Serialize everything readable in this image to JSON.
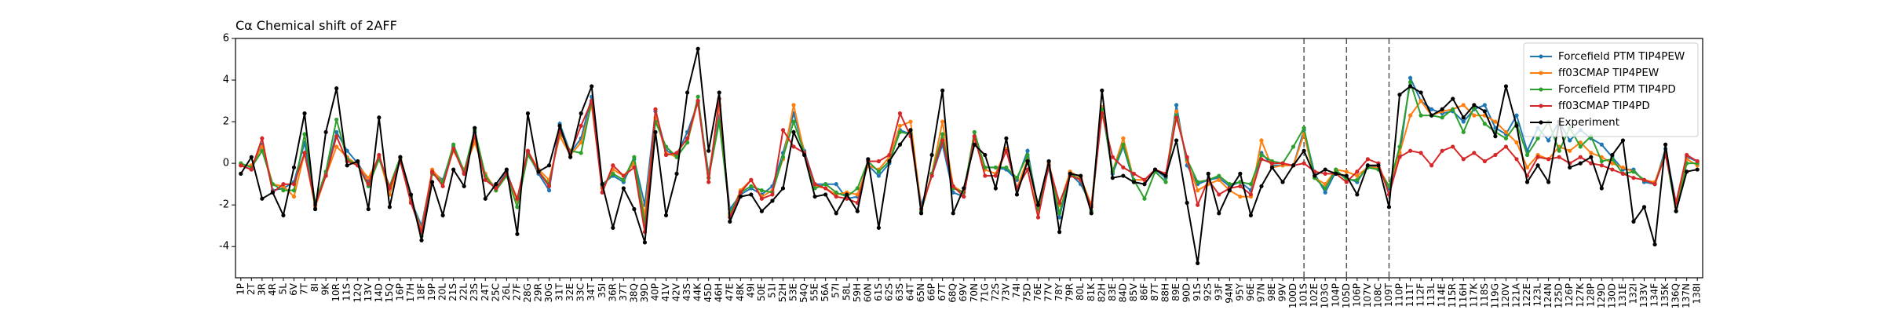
{
  "chart_data": {
    "type": "line",
    "title": "Cα Chemical shift of 2AFF",
    "categories": [
      "1P",
      "2T",
      "3R",
      "4R",
      "5L",
      "6V",
      "7T",
      "8I",
      "9K",
      "10R",
      "11S",
      "12Q",
      "13V",
      "14D",
      "15Q",
      "16P",
      "17H",
      "18F",
      "19P",
      "20L",
      "21S",
      "22L",
      "23S",
      "24T",
      "25C",
      "26L",
      "27F",
      "28G",
      "29R",
      "30G",
      "31T",
      "32E",
      "33C",
      "34T",
      "35I",
      "36R",
      "37T",
      "38Q",
      "39D",
      "40P",
      "41V",
      "42V",
      "43S",
      "44K",
      "45D",
      "46H",
      "47E",
      "48K",
      "49I",
      "50E",
      "51I",
      "52H",
      "53E",
      "54Q",
      "55E",
      "56A",
      "57I",
      "58L",
      "59H",
      "60N",
      "61S",
      "62S",
      "63S",
      "64T",
      "65N",
      "66P",
      "67T",
      "68Q",
      "69V",
      "70N",
      "71G",
      "72S",
      "73V",
      "74I",
      "75D",
      "76E",
      "77V",
      "78Y",
      "79R",
      "80L",
      "81K",
      "82H",
      "83E",
      "84D",
      "85V",
      "86F",
      "87T",
      "88H",
      "89E",
      "90D",
      "91S",
      "92S",
      "93F",
      "94M",
      "95Y",
      "96E",
      "97N",
      "98E",
      "99V",
      "100D",
      "101S",
      "102E",
      "103G",
      "104P",
      "105D",
      "106P",
      "107V",
      "108C",
      "109T",
      "110P",
      "111T",
      "112F",
      "113L",
      "114E",
      "115R",
      "116H",
      "117K",
      "118S",
      "119G",
      "120V",
      "121A",
      "122E",
      "123L",
      "124N",
      "125D",
      "126P",
      "127K",
      "128P",
      "129D",
      "130D",
      "131E",
      "132I",
      "133V",
      "134F",
      "135K",
      "136Q",
      "137N",
      "138I"
    ],
    "series": [
      {
        "name": "Forcefield PTM TIP4PEW",
        "color": "#1f77b4",
        "values": [
          -0.1,
          -0.3,
          0.9,
          -1.3,
          -1.2,
          -0.9,
          1.0,
          -2.0,
          -0.5,
          1.5,
          0.6,
          0.0,
          -0.8,
          0.3,
          -1.3,
          0.3,
          -1.8,
          -3.0,
          -0.4,
          -0.8,
          0.8,
          -0.5,
          1.5,
          -0.6,
          -1.2,
          -0.4,
          -1.8,
          0.5,
          -0.5,
          -1.3,
          1.9,
          0.5,
          1.2,
          3.2,
          -1.0,
          -0.6,
          -0.9,
          0.2,
          -2.0,
          2.5,
          0.6,
          0.4,
          1.5,
          2.9,
          -0.5,
          2.3,
          -2.2,
          -1.5,
          -1.2,
          -1.5,
          -1.1,
          0.5,
          2.4,
          0.6,
          -1.0,
          -1.0,
          -1.0,
          -1.7,
          -1.6,
          -0.1,
          -0.6,
          0.0,
          1.6,
          1.4,
          -2.0,
          -0.6,
          0.9,
          -1.4,
          -1.6,
          1.3,
          -0.2,
          -0.2,
          -0.3,
          -0.8,
          0.6,
          -2.2,
          -0.2,
          -2.6,
          -0.5,
          -1.0,
          -2.0,
          2.7,
          -0.5,
          0.8,
          -0.9,
          -1.0,
          -0.3,
          -0.7,
          2.8,
          -0.1,
          -1.0,
          -0.8,
          -0.7,
          -1.1,
          -0.9,
          -1.3,
          0.5,
          -0.1,
          -0.1,
          -0.1,
          1.6,
          -0.5,
          -1.4,
          -0.4,
          -0.7,
          -0.9,
          -0.1,
          -0.2,
          -1.2,
          0.4,
          4.1,
          3.0,
          2.6,
          2.4,
          2.5,
          2.0,
          2.6,
          2.8,
          1.7,
          1.4,
          2.3,
          0.6,
          1.7,
          1.1,
          2.0,
          1.1,
          1.6,
          1.2,
          0.9,
          0.3,
          -0.3,
          -0.3,
          -0.9,
          -1.0,
          0.7,
          -1.9,
          0.3,
          0.1
        ]
      },
      {
        "name": "ff03CMAP TIP4PEW",
        "color": "#ff7f0e",
        "values": [
          -0.1,
          -0.1,
          0.8,
          -1.0,
          -1.1,
          -1.6,
          0.5,
          -2.1,
          -0.6,
          0.8,
          0.3,
          -0.1,
          -0.7,
          0.3,
          -1.5,
          0.2,
          -1.8,
          -3.2,
          -0.3,
          -0.9,
          0.6,
          -0.3,
          1.0,
          -0.5,
          -1.3,
          -0.6,
          -1.8,
          0.6,
          -0.3,
          -0.8,
          1.3,
          0.4,
          1.0,
          2.8,
          -1.2,
          -0.3,
          -0.6,
          0.0,
          -2.5,
          2.2,
          0.5,
          0.3,
          1.0,
          3.0,
          -0.7,
          2.8,
          -2.5,
          -1.3,
          -0.8,
          -1.6,
          -1.3,
          0.2,
          2.8,
          0.5,
          -1.1,
          -1.2,
          -1.5,
          -1.4,
          -1.5,
          -0.1,
          -0.3,
          0.3,
          1.8,
          2.0,
          -2.2,
          -0.5,
          2.0,
          -1.1,
          -1.4,
          1.2,
          -0.3,
          -0.5,
          0.7,
          -1.2,
          0.2,
          -2.3,
          0.0,
          -2.0,
          -0.4,
          -0.7,
          -2.0,
          2.7,
          -0.4,
          1.2,
          -0.8,
          -0.8,
          -0.3,
          -0.6,
          2.5,
          0.1,
          -1.3,
          -1.0,
          -0.8,
          -1.3,
          -1.6,
          -1.6,
          1.1,
          -0.2,
          -0.1,
          -0.1,
          1.4,
          -0.7,
          -1.0,
          -0.3,
          -0.4,
          -0.6,
          -0.2,
          -0.2,
          -1.1,
          0.5,
          2.3,
          3.0,
          2.3,
          2.5,
          2.6,
          2.8,
          2.3,
          2.3,
          2.0,
          1.5,
          1.0,
          -0.2,
          0.4,
          0.2,
          0.8,
          0.6,
          1.0,
          0.5,
          0.3,
          0.0,
          -0.2,
          -0.4,
          -0.8,
          -0.9,
          0.5,
          -2.1,
          0.2,
          -0.1
        ]
      },
      {
        "name": "Forcefield PTM TIP4PD",
        "color": "#2ca02c",
        "values": [
          0.0,
          -0.2,
          0.6,
          -1.0,
          -1.3,
          -1.3,
          1.4,
          -1.9,
          -0.4,
          2.1,
          0.2,
          -0.1,
          -1.1,
          0.2,
          -1.1,
          0.3,
          -1.6,
          -3.5,
          -0.5,
          -0.9,
          0.9,
          -0.4,
          1.6,
          -0.6,
          -1.3,
          -0.6,
          -2.1,
          0.4,
          -0.4,
          -1.0,
          1.5,
          0.6,
          0.5,
          3.0,
          -1.1,
          -0.5,
          -0.8,
          0.3,
          -2.9,
          2.0,
          0.8,
          0.3,
          1.0,
          3.2,
          -0.7,
          2.0,
          -2.4,
          -1.4,
          -1.1,
          -1.3,
          -1.4,
          0.3,
          2.0,
          0.5,
          -1.2,
          -1.0,
          -1.4,
          -1.6,
          -1.2,
          0.1,
          -0.4,
          0.1,
          1.5,
          1.4,
          -2.3,
          -0.5,
          1.4,
          -1.2,
          -1.4,
          1.5,
          -0.2,
          -0.2,
          -0.2,
          -0.7,
          0.4,
          -2.2,
          -0.1,
          -2.4,
          -0.5,
          -0.8,
          -2.3,
          2.6,
          -0.4,
          0.9,
          -0.8,
          -1.7,
          -0.4,
          -0.9,
          2.3,
          0.2,
          -0.9,
          -0.8,
          -0.6,
          -1.0,
          -0.9,
          -1.0,
          0.4,
          0.1,
          0.0,
          0.8,
          1.7,
          -0.7,
          -1.2,
          -0.3,
          -0.8,
          -0.8,
          -0.2,
          -0.3,
          -1.1,
          0.8,
          3.9,
          2.3,
          2.3,
          2.2,
          2.6,
          1.5,
          2.7,
          1.9,
          1.5,
          1.2,
          1.9,
          0.4,
          1.2,
          2.0,
          0.6,
          1.7,
          0.8,
          1.3,
          0.1,
          0.2,
          -0.5,
          -0.4,
          -0.8,
          -1.0,
          0.5,
          -2.3,
          0.0,
          0.0
        ]
      },
      {
        "name": "ff03CMAP TIP4PD",
        "color": "#d62728",
        "values": [
          -0.1,
          -0.3,
          1.2,
          -1.4,
          -1.0,
          -1.0,
          0.5,
          -2.0,
          -0.6,
          1.3,
          0.1,
          -0.1,
          -1.0,
          0.4,
          -1.2,
          0.1,
          -1.9,
          -3.3,
          -0.4,
          -1.1,
          0.7,
          -0.5,
          1.3,
          -0.8,
          -1.2,
          -0.5,
          -1.7,
          0.6,
          -0.4,
          -1.1,
          1.6,
          0.5,
          1.8,
          3.0,
          -1.4,
          -0.1,
          -0.6,
          -0.2,
          -3.3,
          2.6,
          0.4,
          0.5,
          1.2,
          3.0,
          -0.9,
          3.1,
          -2.6,
          -1.4,
          -0.8,
          -1.7,
          -1.5,
          1.6,
          0.8,
          0.5,
          -1.0,
          -1.2,
          -1.6,
          -1.7,
          -1.9,
          0.1,
          0.1,
          0.4,
          2.4,
          1.3,
          -2.2,
          -0.6,
          1.1,
          -1.1,
          -1.6,
          1.3,
          -0.6,
          -0.6,
          0.6,
          -1.2,
          -0.3,
          -2.6,
          -0.1,
          -1.9,
          -0.6,
          -0.8,
          -2.1,
          2.4,
          0.3,
          -0.2,
          -0.5,
          -0.8,
          -0.3,
          -0.5,
          2.2,
          0.3,
          -2.0,
          -0.8,
          -1.5,
          -1.2,
          -1.1,
          -1.5,
          0.2,
          0.0,
          0.0,
          -0.1,
          0.0,
          -0.4,
          -0.5,
          -0.5,
          -0.9,
          -0.4,
          0.2,
          0.0,
          -1.5,
          0.3,
          0.6,
          0.5,
          -0.1,
          0.6,
          0.8,
          0.2,
          0.5,
          0.1,
          0.4,
          0.8,
          0.2,
          -0.6,
          0.3,
          0.2,
          0.3,
          0.0,
          0.3,
          0.0,
          -0.1,
          -0.3,
          -0.5,
          -0.7,
          -0.8,
          -1.0,
          0.4,
          -1.9,
          0.4,
          0.1
        ]
      },
      {
        "name": "Experiment",
        "color": "#000000",
        "values": [
          -0.5,
          0.3,
          -1.7,
          -1.4,
          -2.5,
          -0.2,
          2.4,
          -2.2,
          1.5,
          3.6,
          -0.1,
          0.1,
          -2.2,
          2.2,
          -2.1,
          0.3,
          -1.5,
          -3.7,
          -0.9,
          -2.5,
          -0.3,
          -1.1,
          1.7,
          -1.7,
          -1.0,
          -0.3,
          -3.4,
          2.4,
          -0.4,
          -0.1,
          1.8,
          0.3,
          2.4,
          3.7,
          -1.0,
          -3.1,
          -1.2,
          -2.2,
          -3.8,
          1.5,
          -2.5,
          -0.5,
          3.4,
          5.5,
          0.6,
          3.4,
          -2.8,
          -1.6,
          -1.5,
          -2.3,
          -1.8,
          -1.2,
          1.5,
          0.4,
          -1.6,
          -1.5,
          -2.4,
          -1.5,
          -2.3,
          0.2,
          -3.1,
          0.1,
          0.9,
          1.6,
          -2.4,
          0.4,
          3.5,
          -2.4,
          -1.2,
          0.9,
          0.4,
          -1.2,
          1.2,
          -1.5,
          0.1,
          -2.0,
          0.1,
          -3.3,
          -0.5,
          -0.6,
          -2.4,
          3.5,
          -0.7,
          -0.6,
          -0.9,
          -1.0,
          -0.3,
          -0.6,
          1.1,
          -1.9,
          -4.8,
          -0.5,
          -2.4,
          -1.3,
          -0.5,
          -2.5,
          -1.1,
          -0.2,
          -0.9,
          -0.1,
          0.6,
          -0.6,
          -0.3,
          -0.5,
          -0.6,
          -1.5,
          -0.1,
          -0.1,
          -2.1,
          3.3,
          3.7,
          3.4,
          2.3,
          2.6,
          3.1,
          2.2,
          2.8,
          2.5,
          1.3,
          3.7,
          1.8,
          -0.9,
          -0.1,
          -0.9,
          2.0,
          -0.2,
          0.0,
          0.3,
          -1.2,
          0.4,
          1.1,
          -2.8,
          -2.1,
          -3.9,
          0.9,
          -2.3,
          -0.4,
          -0.3
        ]
      }
    ],
    "ylim": [
      -5.5,
      6
    ],
    "yticks": [
      -4,
      -2,
      0,
      2,
      4,
      6
    ],
    "vlines": [
      "101S",
      "105D",
      "109T"
    ],
    "legend": "upper right"
  }
}
